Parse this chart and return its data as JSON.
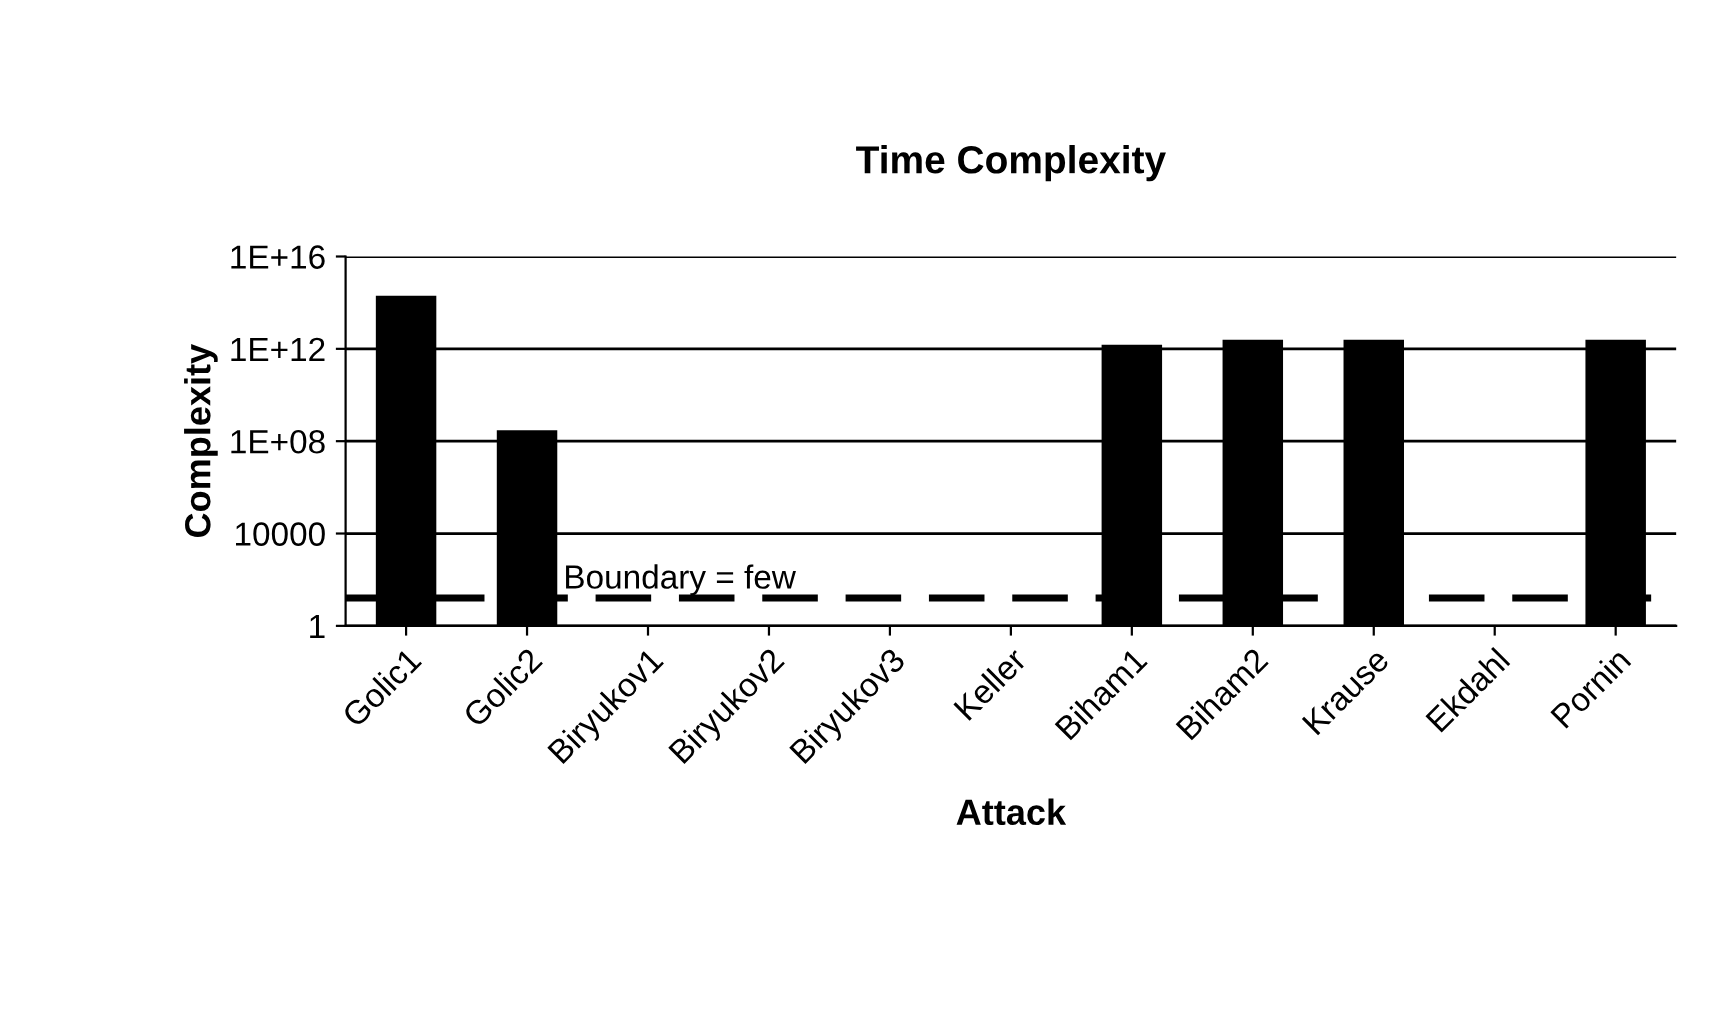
{
  "chart_data": {
    "type": "bar",
    "title": "Time Complexity",
    "xlabel": "Attack",
    "ylabel": "Complexity",
    "categories": [
      "Golic1",
      "Golic2",
      "Biryukov1",
      "Biryukov2",
      "Biryukov3",
      "Keller",
      "Biham1",
      "Biham2",
      "Krause",
      "Ekdahl",
      "Pornin"
    ],
    "values": [
      200000000000000.0,
      300000000.0,
      null,
      null,
      null,
      null,
      1500000000000.0,
      2500000000000.0,
      2500000000000.0,
      null,
      2500000000000.0
    ],
    "color": "#000000",
    "log": true,
    "ylim": [
      1,
      1e+16
    ],
    "yticks": [
      1,
      10000,
      {
        "value": 100000000.0,
        "label": "1E+08"
      },
      {
        "value": 1000000000000.0,
        "label": "1E+12"
      },
      {
        "value": 1e+16,
        "label": "1E+16"
      }
    ],
    "grid": "y",
    "ref_lines": [
      {
        "axis": "y",
        "value": 16,
        "label": "Boundary = few",
        "color": "#000000",
        "line_style": "dashed"
      }
    ]
  }
}
